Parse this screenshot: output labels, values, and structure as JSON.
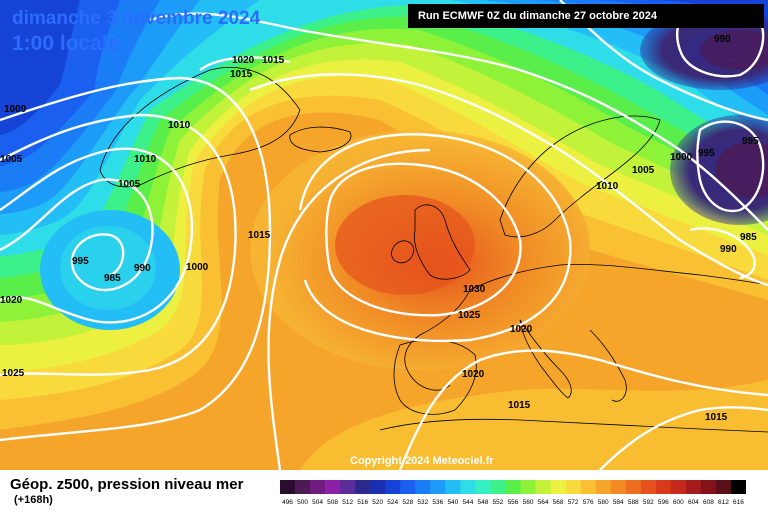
{
  "header": {
    "date_label": "dimanche 3 novembre 2024",
    "time_label": "1:00 locale",
    "run_label": "Run ECMWF 0Z du dimanche 27 octobre 2024"
  },
  "footer": {
    "parameter": "Géop. z500, pression niveau mer",
    "lead_time": "(+168h)",
    "copyright": "Copyright 2024 Meteociel.fr"
  },
  "map": {
    "isobar_labels": [
      "1020",
      "1015",
      "1015",
      "1010",
      "1010",
      "1005",
      "1000",
      "1005",
      "995",
      "985",
      "990",
      "1000",
      "1015",
      "1020",
      "1025",
      "1030",
      "1025",
      "1020",
      "1020",
      "1015",
      "1015",
      "1010",
      "1005",
      "1000",
      "995",
      "995",
      "990",
      "985",
      "990"
    ],
    "colors": {
      "isobar": "#ffffff",
      "coastline": "#000000"
    }
  },
  "legend": {
    "values": [
      "496",
      "500",
      "504",
      "508",
      "512",
      "516",
      "520",
      "524",
      "528",
      "532",
      "536",
      "540",
      "544",
      "548",
      "552",
      "556",
      "560",
      "564",
      "568",
      "572",
      "576",
      "580",
      "584",
      "588",
      "592",
      "596",
      "600",
      "604",
      "608",
      "612",
      "616"
    ],
    "colors": [
      "#2a0d2e",
      "#4d1a55",
      "#6e1d7e",
      "#8e1fa8",
      "#5a2d9a",
      "#2c2a8c",
      "#1a2fb0",
      "#1543d6",
      "#1a5ff0",
      "#1b7df5",
      "#1c9cf8",
      "#23bef5",
      "#2fdde8",
      "#36efc4",
      "#3cf08a",
      "#59ee4a",
      "#8ef239",
      "#c3f23a",
      "#ecf041",
      "#f8da3c",
      "#f8c032",
      "#f6a52b",
      "#f38b25",
      "#ee6e20",
      "#e6521d",
      "#d93a1c",
      "#c42a1c",
      "#a51c1c",
      "#82131b",
      "#5a0e16",
      "#000000"
    ]
  }
}
